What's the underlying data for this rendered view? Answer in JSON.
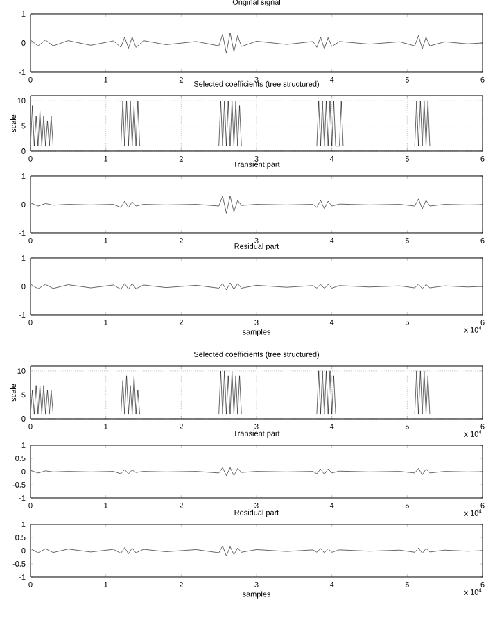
{
  "chart_data": [
    {
      "type": "line",
      "title": "Original signal",
      "xlim": [
        0,
        6
      ],
      "xticks": [
        0,
        1,
        2,
        3,
        4,
        5,
        6
      ],
      "ylim": [
        -1,
        1
      ],
      "yticks": [
        -1,
        0,
        1
      ],
      "x": [
        0,
        0.1,
        0.2,
        0.3,
        0.5,
        0.8,
        1.1,
        1.2,
        1.25,
        1.3,
        1.35,
        1.4,
        1.5,
        1.8,
        2.2,
        2.5,
        2.55,
        2.6,
        2.65,
        2.7,
        2.75,
        2.8,
        3,
        3.4,
        3.75,
        3.8,
        3.85,
        3.9,
        3.95,
        4,
        4.1,
        4.5,
        4.9,
        5.1,
        5.15,
        5.2,
        5.25,
        5.3,
        5.5,
        5.8,
        6
      ],
      "series": [
        {
          "color": "#000000",
          "values": [
            0.1,
            -0.1,
            0.1,
            -0.1,
            0.08,
            -0.08,
            0.07,
            -0.15,
            0.2,
            -0.18,
            0.2,
            -0.15,
            0.08,
            -0.06,
            0.05,
            -0.1,
            0.3,
            -0.35,
            0.35,
            -0.3,
            0.25,
            -0.12,
            0.06,
            -0.05,
            0.05,
            -0.15,
            0.2,
            -0.2,
            0.18,
            -0.12,
            0.05,
            -0.04,
            0.04,
            -0.1,
            0.25,
            -0.2,
            0.2,
            -0.1,
            0.04,
            -0.03,
            0
          ]
        }
      ]
    },
    {
      "type": "line",
      "title": "Selected coefficients (tree structured)",
      "ylabel": "scale",
      "grid": true,
      "xlim": [
        0,
        6
      ],
      "xticks": [
        0,
        1,
        2,
        3,
        4,
        5,
        6
      ],
      "ylim": [
        0,
        11
      ],
      "yticks": [
        0,
        5,
        10
      ],
      "x": [
        0,
        0.025,
        0.05,
        0.075,
        0.1,
        0.125,
        0.15,
        0.175,
        0.2,
        0.225,
        0.25,
        0.275,
        0.3,
        0.7,
        1.2,
        1.225,
        1.25,
        1.275,
        1.3,
        1.325,
        1.35,
        1.375,
        1.4,
        1.425,
        1.45,
        2,
        2.5,
        2.525,
        2.55,
        2.575,
        2.6,
        2.625,
        2.65,
        2.675,
        2.7,
        2.725,
        2.75,
        2.775,
        2.8,
        3.3,
        3.8,
        3.825,
        3.85,
        3.875,
        3.9,
        3.925,
        3.95,
        3.975,
        4,
        4.025,
        4.05,
        4.1,
        4.125,
        4.15,
        4.6,
        5.1,
        5.125,
        5.15,
        5.175,
        5.2,
        5.225,
        5.25,
        5.275,
        5.3
      ],
      "series": [
        {
          "color": "#000000",
          "values": [
            1,
            9,
            1,
            7,
            1,
            8,
            1,
            7,
            1,
            6,
            1,
            7,
            1,
            null,
            1,
            10,
            1,
            10,
            1,
            10,
            1,
            9,
            1,
            10,
            1,
            null,
            1,
            10,
            1,
            10,
            1,
            10,
            1,
            10,
            1,
            10,
            1,
            9,
            1,
            null,
            1,
            10,
            1,
            10,
            1,
            10,
            1,
            10,
            1,
            10,
            1,
            1,
            10,
            1,
            null,
            1,
            10,
            1,
            10,
            1,
            10,
            1,
            10,
            1
          ]
        }
      ]
    },
    {
      "type": "line",
      "title": "Transient part",
      "xlim": [
        0,
        6
      ],
      "xticks": [
        0,
        1,
        2,
        3,
        4,
        5,
        6
      ],
      "ylim": [
        -1,
        1
      ],
      "yticks": [
        -1,
        0,
        1
      ],
      "x": [
        0,
        0.1,
        0.2,
        0.3,
        0.5,
        0.8,
        1.1,
        1.2,
        1.25,
        1.3,
        1.35,
        1.4,
        1.5,
        1.8,
        2.2,
        2.5,
        2.55,
        2.6,
        2.65,
        2.7,
        2.75,
        2.8,
        3,
        3.4,
        3.75,
        3.8,
        3.85,
        3.9,
        3.95,
        4,
        4.1,
        4.5,
        4.9,
        5.1,
        5.15,
        5.2,
        5.25,
        5.3,
        5.5,
        5.8,
        6
      ],
      "series": [
        {
          "color": "#000000",
          "values": [
            0.06,
            -0.05,
            0.04,
            -0.02,
            0.01,
            -0.01,
            0.01,
            -0.1,
            0.12,
            -0.1,
            0.1,
            -0.05,
            0.01,
            -0.01,
            0.01,
            -0.05,
            0.3,
            -0.3,
            0.3,
            -0.25,
            0.15,
            -0.03,
            0.01,
            -0.01,
            0.01,
            -0.1,
            0.15,
            -0.15,
            0.12,
            -0.05,
            0.02,
            -0.01,
            0.01,
            -0.05,
            0.2,
            -0.15,
            0.15,
            -0.05,
            0.01,
            -0.01,
            0
          ]
        }
      ]
    },
    {
      "type": "line",
      "title": "Residual part",
      "xlabel": "samples",
      "annotations": [
        "x 10$^{4}$"
      ],
      "xlim": [
        0,
        6
      ],
      "xticks": [
        0,
        1,
        2,
        3,
        4,
        5,
        6
      ],
      "ylim": [
        -1,
        1
      ],
      "yticks": [
        -1,
        0,
        1
      ],
      "x": [
        0,
        0.1,
        0.2,
        0.3,
        0.5,
        0.8,
        1.1,
        1.2,
        1.25,
        1.3,
        1.35,
        1.4,
        1.5,
        1.8,
        2.2,
        2.5,
        2.55,
        2.6,
        2.65,
        2.7,
        2.75,
        2.8,
        3,
        3.4,
        3.75,
        3.8,
        3.85,
        3.9,
        3.95,
        4,
        4.1,
        4.5,
        4.9,
        5.1,
        5.15,
        5.2,
        5.25,
        5.3,
        5.5,
        5.8,
        6
      ],
      "series": [
        {
          "color": "#000000",
          "values": [
            0.08,
            -0.08,
            0.07,
            -0.07,
            0.06,
            -0.05,
            0.05,
            -0.1,
            0.1,
            -0.1,
            0.1,
            -0.08,
            0.05,
            -0.04,
            0.04,
            -0.06,
            0.1,
            -0.12,
            0.12,
            -0.1,
            0.1,
            -0.06,
            0.04,
            -0.03,
            0.03,
            -0.06,
            0.07,
            -0.07,
            0.07,
            -0.06,
            0.03,
            -0.02,
            0.02,
            -0.05,
            0.08,
            -0.08,
            0.07,
            -0.05,
            0.02,
            -0.02,
            0
          ]
        }
      ]
    },
    {
      "type": "line",
      "title": "Selected coefficients (tree structured)",
      "ylabel": "scale",
      "grid": true,
      "annotations": [
        "x 10$^{4}$"
      ],
      "xlim": [
        0,
        6
      ],
      "xticks": [
        0,
        1,
        2,
        3,
        4,
        5,
        6
      ],
      "ylim": [
        0,
        11
      ],
      "yticks": [
        0,
        5,
        10
      ],
      "x": [
        0,
        0.025,
        0.05,
        0.075,
        0.1,
        0.125,
        0.15,
        0.175,
        0.2,
        0.225,
        0.25,
        0.275,
        0.3,
        0.7,
        1.2,
        1.225,
        1.25,
        1.275,
        1.3,
        1.325,
        1.35,
        1.375,
        1.4,
        1.425,
        1.45,
        2,
        2.5,
        2.525,
        2.55,
        2.575,
        2.6,
        2.625,
        2.65,
        2.675,
        2.7,
        2.725,
        2.75,
        2.775,
        2.8,
        3.3,
        3.8,
        3.825,
        3.85,
        3.875,
        3.9,
        3.925,
        3.95,
        3.975,
        4,
        4.025,
        4.05,
        4.1,
        4.125,
        4.15,
        4.6,
        5.1,
        5.125,
        5.15,
        5.175,
        5.2,
        5.225,
        5.25,
        5.275,
        5.3
      ],
      "series": [
        {
          "color": "#000000",
          "values": [
            1,
            6,
            1,
            7,
            1,
            7,
            1,
            7,
            1,
            6,
            1,
            6,
            1,
            null,
            1,
            8,
            1,
            9,
            1,
            7,
            1,
            9,
            1,
            6,
            1,
            null,
            1,
            10,
            1,
            10,
            1,
            9,
            1,
            10,
            1,
            9,
            1,
            9,
            1,
            null,
            1,
            10,
            1,
            10,
            1,
            10,
            1,
            10,
            1,
            9,
            1,
            null,
            null,
            null,
            null,
            1,
            10,
            1,
            10,
            1,
            10,
            1,
            9,
            1
          ]
        }
      ]
    },
    {
      "type": "line",
      "title": "Transient part",
      "annotations": [
        "x 10$^{4}$"
      ],
      "xlim": [
        0,
        6
      ],
      "xticks": [
        0,
        1,
        2,
        3,
        4,
        5,
        6
      ],
      "ylim": [
        -1,
        1
      ],
      "yticks": [
        -1,
        -0.5,
        0,
        0.5,
        1
      ],
      "x": [
        0,
        0.1,
        0.2,
        0.3,
        0.5,
        0.8,
        1.1,
        1.2,
        1.25,
        1.3,
        1.35,
        1.4,
        1.5,
        1.8,
        2.2,
        2.5,
        2.55,
        2.6,
        2.65,
        2.7,
        2.75,
        2.8,
        3,
        3.4,
        3.75,
        3.8,
        3.85,
        3.9,
        3.95,
        4,
        4.1,
        4.5,
        4.9,
        5.1,
        5.15,
        5.2,
        5.25,
        5.3,
        5.5,
        5.8,
        6
      ],
      "series": [
        {
          "color": "#000000",
          "values": [
            0.05,
            -0.05,
            0.03,
            -0.01,
            0.01,
            -0.01,
            0.01,
            -0.08,
            0.08,
            -0.08,
            0.06,
            -0.03,
            0.01,
            -0.01,
            0.01,
            -0.05,
            0.15,
            -0.15,
            0.15,
            -0.15,
            0.12,
            -0.03,
            0.01,
            -0.01,
            0.01,
            -0.08,
            0.1,
            -0.1,
            0.1,
            -0.05,
            0.02,
            -0.01,
            0.01,
            -0.05,
            0.12,
            -0.12,
            0.1,
            -0.05,
            0.01,
            -0.01,
            0
          ]
        }
      ]
    },
    {
      "type": "line",
      "title": "Residual part",
      "xlabel": "samples",
      "annotations": [
        "x 10$^{4}$"
      ],
      "xlim": [
        0,
        6
      ],
      "xticks": [
        0,
        1,
        2,
        3,
        4,
        5,
        6
      ],
      "ylim": [
        -1,
        1
      ],
      "yticks": [
        -1,
        -0.5,
        0,
        0.5,
        1
      ],
      "x": [
        0,
        0.1,
        0.2,
        0.3,
        0.5,
        0.8,
        1.1,
        1.2,
        1.25,
        1.3,
        1.35,
        1.4,
        1.5,
        1.8,
        2.2,
        2.5,
        2.55,
        2.6,
        2.65,
        2.7,
        2.75,
        2.8,
        3,
        3.4,
        3.75,
        3.8,
        3.85,
        3.9,
        3.95,
        4,
        4.1,
        4.5,
        4.9,
        5.1,
        5.15,
        5.2,
        5.25,
        5.3,
        5.5,
        5.8,
        6
      ],
      "series": [
        {
          "color": "#000000",
          "values": [
            0.08,
            -0.08,
            0.07,
            -0.07,
            0.06,
            -0.05,
            0.05,
            -0.1,
            0.12,
            -0.12,
            0.1,
            -0.08,
            0.05,
            -0.04,
            0.04,
            -0.08,
            0.18,
            -0.2,
            0.15,
            -0.15,
            0.1,
            -0.06,
            0.04,
            -0.03,
            0.03,
            -0.06,
            0.08,
            -0.08,
            0.07,
            -0.06,
            0.03,
            -0.02,
            0.02,
            -0.06,
            0.1,
            -0.1,
            0.08,
            -0.05,
            0.02,
            -0.02,
            0
          ]
        }
      ]
    }
  ]
}
